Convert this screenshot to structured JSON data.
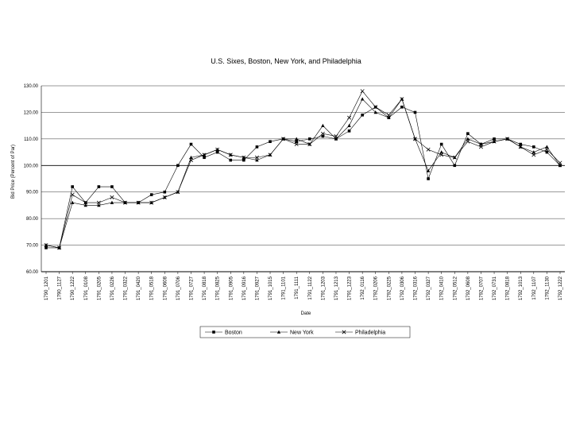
{
  "chart_data": {
    "type": "line",
    "title": "U.S. Sixes, Boston, New York, and Philadelphia",
    "xlabel": "Date",
    "ylabel": "Bid Price (Percent of Par)",
    "ylim": [
      60,
      130
    ],
    "yticks": [
      "60.00",
      "70.00",
      "80.00",
      "90.00",
      "100.00",
      "110.00",
      "120.00",
      "130.00"
    ],
    "reference_line": 100,
    "grid": true,
    "legend_placement": "bottom-center",
    "categories": [
      "1790_1201",
      "1790_1127",
      "1790_1222",
      "1791_0108",
      "1791_0205",
      "1791_0226",
      "1791_0322",
      "1791_0420",
      "1791_0518",
      "1791_0608",
      "1791_0706",
      "1791_0727",
      "1791_0818",
      "1791_0825",
      "1791_0905",
      "1791_0916",
      "1791_0927",
      "1791_1015",
      "1791_1101",
      "1791_1111",
      "1791_1122",
      "1791_1203",
      "1791_1213",
      "1791_1223",
      "1792_0116",
      "1792_0206",
      "1792_0225",
      "1792_0306",
      "1792_0316",
      "1792_0327",
      "1792_0410",
      "1792_0512",
      "1792_0608",
      "1792_0707",
      "1792_0731",
      "1792_0818",
      "1792_1013",
      "1792_1107",
      "1792_1130",
      "1792_1222"
    ],
    "series": [
      {
        "name": "Boston",
        "marker": "square",
        "values": [
          69,
          69,
          92,
          86,
          92,
          92,
          86,
          86,
          89,
          90,
          100,
          108,
          103,
          105,
          102,
          102,
          107,
          109,
          110,
          109,
          110,
          111,
          110,
          113,
          119,
          122,
          118,
          122,
          120,
          95,
          108,
          100,
          112,
          108,
          110,
          110,
          108,
          107,
          105,
          100
        ]
      },
      {
        "name": "New York",
        "marker": "triangle",
        "values": [
          70,
          69,
          86,
          85,
          85,
          86,
          86,
          86,
          86,
          88,
          90,
          103,
          104,
          106,
          104,
          103,
          102,
          104,
          110,
          110,
          108,
          115,
          110,
          115,
          125,
          120,
          118,
          125,
          110,
          98,
          105,
          103,
          110,
          108,
          109,
          110,
          107,
          105,
          107,
          100
        ]
      },
      {
        "name": "Philadelphia",
        "marker": "x",
        "values": [
          70,
          69,
          89,
          86,
          86,
          88,
          86,
          86,
          86,
          88,
          90,
          102,
          104,
          106,
          104,
          103,
          103,
          104,
          110,
          108,
          108,
          112,
          111,
          118,
          128,
          122,
          119,
          125,
          110,
          106,
          104,
          103,
          109,
          107,
          109,
          110,
          107,
          104,
          106,
          101
        ]
      }
    ]
  }
}
